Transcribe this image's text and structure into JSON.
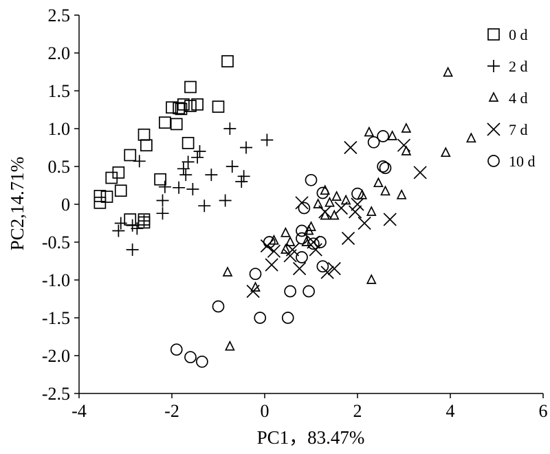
{
  "chart_data": {
    "type": "scatter",
    "title": "",
    "xlabel": "PC1，83.47%",
    "ylabel": "PC2,14.71%",
    "xlim": [
      -4,
      6
    ],
    "ylim": [
      -2.5,
      2.5
    ],
    "xticks": [
      "-4",
      "-2",
      "0",
      "2",
      "4",
      "6"
    ],
    "yticks": [
      "2.5",
      "2.0",
      "1.5",
      "1.0",
      "0.5",
      "0",
      "-0.5",
      "-1.0",
      "-1.5",
      "-2.0",
      "-2.5"
    ],
    "grid": false,
    "legend_position": "top-right",
    "series": [
      {
        "name": "0 d",
        "marker": "square",
        "points": [
          [
            -3.55,
            0.11
          ],
          [
            -3.55,
            0.02
          ],
          [
            -3.4,
            0.1
          ],
          [
            -3.3,
            0.35
          ],
          [
            -3.15,
            0.42
          ],
          [
            -3.1,
            0.18
          ],
          [
            -2.9,
            0.65
          ],
          [
            -2.9,
            -0.2
          ],
          [
            -2.6,
            0.92
          ],
          [
            -2.55,
            0.78
          ],
          [
            -2.6,
            -0.2
          ],
          [
            -2.6,
            -0.24
          ],
          [
            -2.25,
            0.33
          ],
          [
            -2.15,
            1.08
          ],
          [
            -2.0,
            1.28
          ],
          [
            -1.9,
            1.06
          ],
          [
            -1.85,
            1.27
          ],
          [
            -1.75,
            1.32
          ],
          [
            -1.8,
            1.26
          ],
          [
            -1.6,
            1.55
          ],
          [
            -1.65,
            0.81
          ],
          [
            -1.6,
            1.3
          ],
          [
            -1.45,
            1.32
          ],
          [
            -1.0,
            1.29
          ],
          [
            -0.8,
            1.89
          ]
        ]
      },
      {
        "name": "2 d",
        "marker": "plus",
        "points": [
          [
            -3.15,
            -0.35
          ],
          [
            -3.1,
            -0.25
          ],
          [
            -2.85,
            -0.6
          ],
          [
            -2.85,
            -0.28
          ],
          [
            -2.75,
            -0.32
          ],
          [
            -2.7,
            0.57
          ],
          [
            -2.6,
            -0.22
          ],
          [
            -2.2,
            0.05
          ],
          [
            -2.2,
            -0.12
          ],
          [
            -2.15,
            0.23
          ],
          [
            -1.85,
            0.22
          ],
          [
            -1.75,
            0.47
          ],
          [
            -1.7,
            0.39
          ],
          [
            -1.65,
            0.56
          ],
          [
            -1.55,
            0.2
          ],
          [
            -1.45,
            0.62
          ],
          [
            -1.4,
            0.7
          ],
          [
            -1.3,
            -0.02
          ],
          [
            -1.15,
            0.39
          ],
          [
            -0.85,
            0.05
          ],
          [
            -0.75,
            1.0
          ],
          [
            -0.7,
            0.5
          ],
          [
            -0.5,
            0.3
          ],
          [
            -0.45,
            0.37
          ],
          [
            -0.4,
            0.75
          ],
          [
            0.05,
            0.85
          ]
        ]
      },
      {
        "name": "4 d",
        "marker": "triangle",
        "points": [
          [
            -0.8,
            -0.9
          ],
          [
            -0.75,
            -1.88
          ],
          [
            -0.2,
            -1.1
          ],
          [
            0.2,
            -0.48
          ],
          [
            0.45,
            -0.38
          ],
          [
            0.45,
            -0.6
          ],
          [
            0.55,
            -0.5
          ],
          [
            0.9,
            -0.5
          ],
          [
            0.95,
            -0.35
          ],
          [
            1.0,
            -0.3
          ],
          [
            1.15,
            0.0
          ],
          [
            1.3,
            0.18
          ],
          [
            1.3,
            -0.15
          ],
          [
            1.4,
            0.02
          ],
          [
            1.5,
            -0.15
          ],
          [
            1.55,
            0.1
          ],
          [
            1.75,
            0.05
          ],
          [
            2.1,
            0.12
          ],
          [
            2.25,
            0.95
          ],
          [
            2.3,
            -0.1
          ],
          [
            2.3,
            -1.0
          ],
          [
            2.45,
            0.28
          ],
          [
            2.6,
            0.17
          ],
          [
            2.75,
            0.9
          ],
          [
            2.95,
            0.12
          ],
          [
            3.05,
            1.0
          ],
          [
            3.05,
            0.7
          ],
          [
            3.9,
            0.68
          ],
          [
            3.95,
            1.74
          ],
          [
            4.45,
            0.87
          ]
        ]
      },
      {
        "name": "7 d",
        "marker": "cross",
        "points": [
          [
            -0.25,
            -1.15
          ],
          [
            0.05,
            -0.55
          ],
          [
            0.15,
            -0.8
          ],
          [
            0.2,
            -0.62
          ],
          [
            0.55,
            -0.68
          ],
          [
            0.6,
            -0.6
          ],
          [
            0.75,
            -0.85
          ],
          [
            0.8,
            0.02
          ],
          [
            1.05,
            -0.5
          ],
          [
            1.1,
            -0.6
          ],
          [
            1.3,
            -0.1
          ],
          [
            1.35,
            -0.9
          ],
          [
            1.5,
            -0.85
          ],
          [
            1.65,
            -0.05
          ],
          [
            1.8,
            -0.45
          ],
          [
            1.85,
            0.75
          ],
          [
            1.95,
            -0.1
          ],
          [
            2.0,
            0.0
          ],
          [
            2.15,
            -0.25
          ],
          [
            2.7,
            -0.2
          ],
          [
            3.0,
            0.78
          ],
          [
            3.35,
            0.42
          ]
        ]
      },
      {
        "name": "10 d",
        "marker": "circle",
        "points": [
          [
            -1.9,
            -1.92
          ],
          [
            -1.6,
            -2.02
          ],
          [
            -1.35,
            -2.08
          ],
          [
            -1.0,
            -1.35
          ],
          [
            -0.2,
            -0.92
          ],
          [
            -0.1,
            -1.5
          ],
          [
            0.1,
            -0.5
          ],
          [
            0.5,
            -1.5
          ],
          [
            0.55,
            -1.15
          ],
          [
            0.8,
            -0.35
          ],
          [
            0.8,
            -0.45
          ],
          [
            0.8,
            -0.7
          ],
          [
            0.85,
            -0.05
          ],
          [
            0.95,
            -1.15
          ],
          [
            1.0,
            0.32
          ],
          [
            1.05,
            -0.52
          ],
          [
            1.2,
            -0.5
          ],
          [
            1.25,
            0.15
          ],
          [
            1.25,
            -0.82
          ],
          [
            2.0,
            0.14
          ],
          [
            2.35,
            0.82
          ],
          [
            2.55,
            0.9
          ],
          [
            2.55,
            0.5
          ],
          [
            2.6,
            0.48
          ]
        ]
      }
    ]
  }
}
